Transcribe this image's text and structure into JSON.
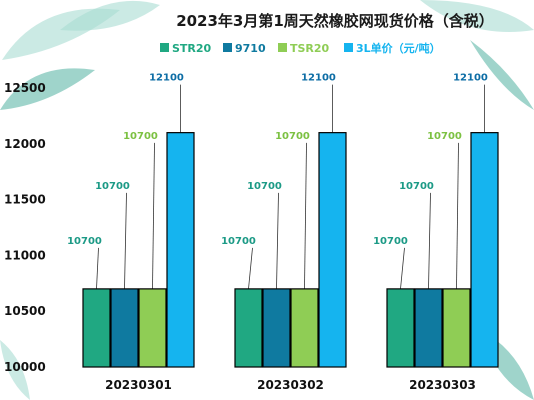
{
  "colors": {
    "background": "#ffffff",
    "leaf_light": "#a9dcd2",
    "leaf_dark": "#5fb8a8",
    "axis": "#111111",
    "leader": "#333333"
  },
  "chart_data": {
    "type": "bar",
    "title": "2023年3月第1周天然橡胶网现货价格（含税）",
    "categories": [
      "20230301",
      "20230302",
      "20230303"
    ],
    "series": [
      {
        "name": "STR20",
        "color": "#20a882",
        "label_color": "#1c9a86",
        "values": [
          10700,
          10700,
          10700
        ]
      },
      {
        "name": "9710",
        "color": "#0f7aa0",
        "label_color": "#1c9a86",
        "values": [
          10700,
          10700,
          10700
        ]
      },
      {
        "name": "TSR20",
        "color": "#8fcd55",
        "label_color": "#7cc142",
        "values": [
          10700,
          10700,
          10700
        ]
      },
      {
        "name": "3L单价（元/吨）",
        "color": "#15b4ef",
        "label_color": "#0d6da5",
        "values": [
          12100,
          12100,
          12100
        ]
      }
    ],
    "data_labels": [
      [
        "10700",
        "10700",
        "10700",
        "12100"
      ],
      [
        "10700",
        "10700",
        "10700",
        "12100"
      ],
      [
        "10700",
        "10700",
        "10700",
        "12100"
      ]
    ],
    "ylim": [
      10000,
      12500
    ],
    "yticks": [
      "10000",
      "10500",
      "11000",
      "11500",
      "12000",
      "12500"
    ],
    "xlabel": "",
    "ylabel": "",
    "legend_position": "top",
    "grid": false
  }
}
